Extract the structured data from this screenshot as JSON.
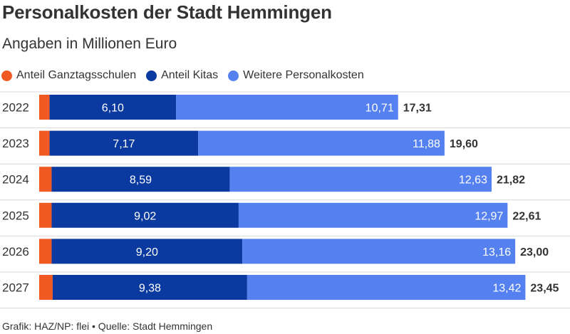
{
  "colors": {
    "ganztag": "#f05a22",
    "kitas": "#0a3aa0",
    "weitere": "#5580f0",
    "separator": "#d8d8d8",
    "text": "#333333"
  },
  "chart_data": {
    "type": "bar",
    "orientation": "horizontal",
    "stacked": true,
    "title": "Personalkosten der Stadt Hemmingen",
    "subtitle": "Angaben in Millionen Euro",
    "categories": [
      "2022",
      "2023",
      "2024",
      "2025",
      "2026",
      "2027"
    ],
    "series": [
      {
        "name": "Anteil Ganztagsschulen",
        "values": [
          0.5,
          0.5,
          0.6,
          0.6,
          0.6,
          0.65
        ]
      },
      {
        "name": "Anteil Kitas",
        "values": [
          6.1,
          7.17,
          8.59,
          9.02,
          9.2,
          9.38
        ]
      },
      {
        "name": "Weitere Personalkosten",
        "values": [
          10.71,
          11.88,
          12.63,
          12.97,
          13.16,
          13.42
        ]
      }
    ],
    "series_labels": [
      [
        "",
        "",
        "",
        "",
        "",
        ""
      ],
      [
        "6,10",
        "7,17",
        "8,59",
        "9,02",
        "9,20",
        "9,38"
      ],
      [
        "10,71",
        "11,88",
        "12,63",
        "12,97",
        "13,16",
        "13,42"
      ]
    ],
    "totals": [
      "17,31",
      "19,60",
      "21,82",
      "22,61",
      "23,00",
      "23,45"
    ],
    "total_values": [
      17.31,
      19.6,
      21.82,
      22.61,
      23.0,
      23.45
    ],
    "legend_position": "top-left",
    "grid": false
  },
  "footer": "Grafik: HAZ/NP: flei • Quelle: Stadt Hemmingen"
}
